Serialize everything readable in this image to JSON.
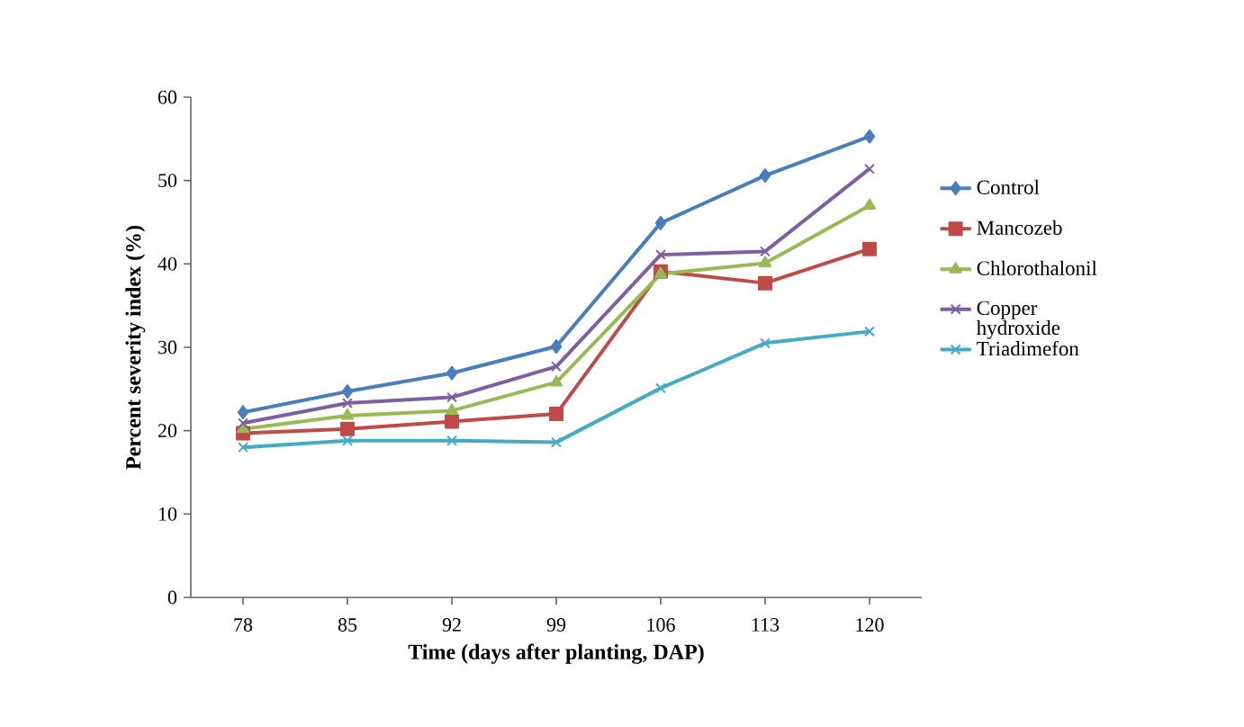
{
  "chart_data": {
    "type": "line",
    "xlabel": "Time (days after planting, DAP)",
    "ylabel": "Percent severity index (%)",
    "categories": [
      "78",
      "85",
      "92",
      "99",
      "106",
      "113",
      "120"
    ],
    "series": [
      {
        "name": "Control",
        "color": "#4a7ebb",
        "marker": "diamond",
        "values": [
          22.2,
          24.7,
          26.9,
          30.1,
          44.9,
          50.6,
          55.3
        ]
      },
      {
        "name": "Mancozeb",
        "color": "#be4b48",
        "marker": "square",
        "values": [
          19.7,
          20.2,
          21.1,
          22.0,
          39.1,
          37.7,
          41.8
        ]
      },
      {
        "name": "Chlorothalonil",
        "color": "#98b954",
        "marker": "triangle",
        "values": [
          20.2,
          21.8,
          22.4,
          25.8,
          38.8,
          40.1,
          47.0
        ]
      },
      {
        "name": "Copper hydroxide",
        "color": "#7d60a0",
        "marker": "cross",
        "values": [
          20.9,
          23.3,
          24.0,
          27.7,
          41.1,
          41.5,
          51.4
        ]
      },
      {
        "name": "Triadimefon",
        "color": "#46aac5",
        "marker": "cross",
        "values": [
          18.0,
          18.8,
          18.8,
          18.6,
          25.1,
          30.5,
          31.9
        ]
      }
    ],
    "ylim": [
      0,
      60
    ],
    "yticks": [
      0,
      10,
      20,
      30,
      40,
      50,
      60
    ],
    "grid": false,
    "legend": "right",
    "line_style": "solid"
  }
}
